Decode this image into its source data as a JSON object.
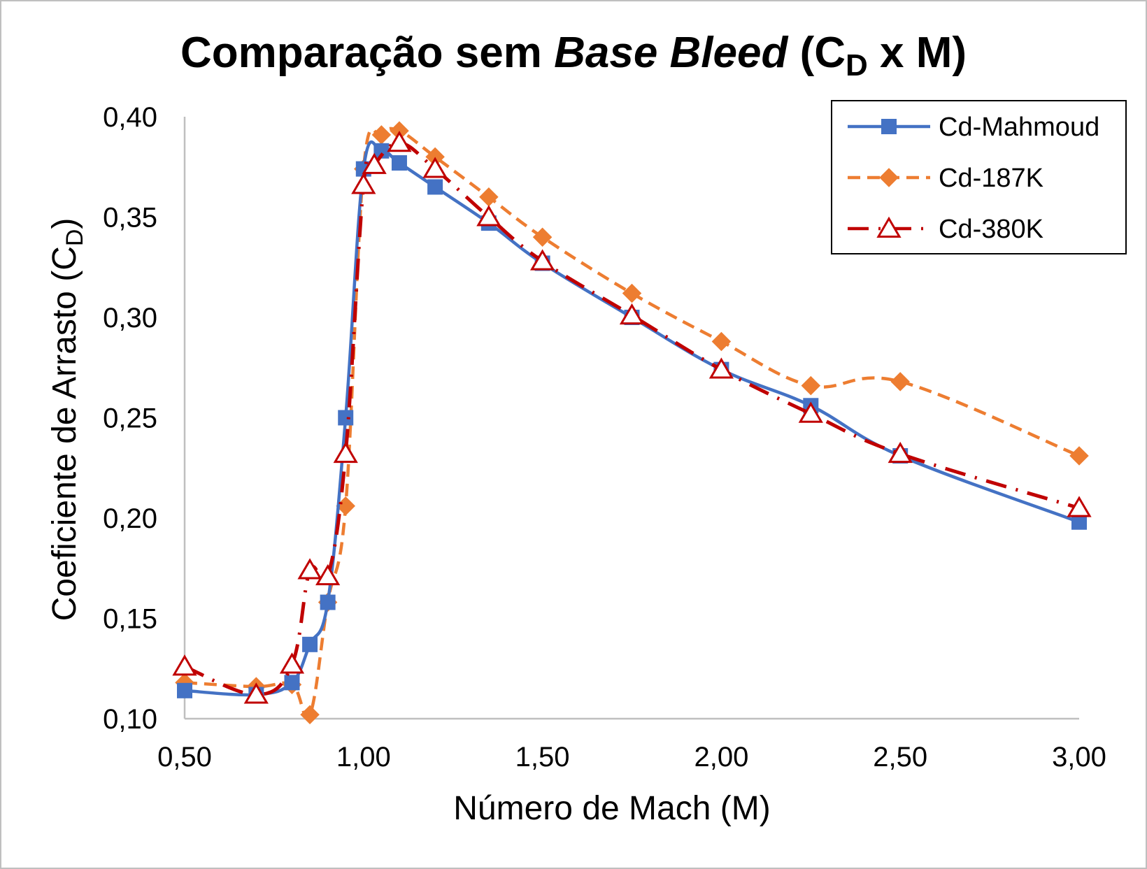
{
  "chart_data": {
    "type": "line",
    "title": {
      "main": "Comparação sem ",
      "italic": "Base Bleed",
      "tail_open": " (C",
      "tail_sub": "D",
      "tail_close": " x M)"
    },
    "xlabel": "Número de Mach (M)",
    "ylabel": {
      "main": "Coeficiente de Arrasto (C",
      "sub": "D",
      "close": ")"
    },
    "xlim": [
      0.5,
      3.0
    ],
    "ylim": [
      0.1,
      0.4
    ],
    "x_ticks": [
      "0,50",
      "1,00",
      "1,50",
      "2,00",
      "2,50",
      "3,00"
    ],
    "y_ticks": [
      "0,10",
      "0,15",
      "0,20",
      "0,25",
      "0,30",
      "0,35",
      "0,40"
    ],
    "grid": false,
    "legend_position": "top-right",
    "series": [
      {
        "name": "Cd-Mahmoud",
        "color": "#4472c4",
        "marker": "square",
        "line_style": "solid",
        "points": [
          [
            0.5,
            0.114
          ],
          [
            0.7,
            0.112
          ],
          [
            0.8,
            0.118
          ],
          [
            0.85,
            0.137
          ],
          [
            0.9,
            0.158
          ],
          [
            0.95,
            0.25
          ],
          [
            1.0,
            0.374
          ],
          [
            1.05,
            0.383
          ],
          [
            1.1,
            0.377
          ],
          [
            1.2,
            0.365
          ],
          [
            1.35,
            0.347
          ],
          [
            1.5,
            0.327
          ],
          [
            1.75,
            0.3
          ],
          [
            2.0,
            0.274
          ],
          [
            2.25,
            0.256
          ],
          [
            2.5,
            0.231
          ],
          [
            3.0,
            0.198
          ]
        ]
      },
      {
        "name": "Cd-187K",
        "color": "#ed7d31",
        "marker": "diamond",
        "line_style": "dashed",
        "points": [
          [
            0.5,
            0.118
          ],
          [
            0.7,
            0.116
          ],
          [
            0.8,
            0.117
          ],
          [
            0.85,
            0.102
          ],
          [
            0.9,
            0.158
          ],
          [
            0.95,
            0.206
          ],
          [
            1.0,
            0.374
          ],
          [
            1.05,
            0.391
          ],
          [
            1.1,
            0.393
          ],
          [
            1.2,
            0.38
          ],
          [
            1.35,
            0.36
          ],
          [
            1.5,
            0.34
          ],
          [
            1.75,
            0.312
          ],
          [
            2.0,
            0.288
          ],
          [
            2.25,
            0.266
          ],
          [
            2.5,
            0.268
          ],
          [
            3.0,
            0.231
          ]
        ]
      },
      {
        "name": "Cd-380K",
        "color": "#c00000",
        "marker": "triangle-open",
        "line_style": "dash-dot",
        "points": [
          [
            0.5,
            0.126
          ],
          [
            0.7,
            0.112
          ],
          [
            0.8,
            0.127
          ],
          [
            0.85,
            0.174
          ],
          [
            0.9,
            0.171
          ],
          [
            0.95,
            0.232
          ],
          [
            1.0,
            0.366
          ],
          [
            1.03,
            0.376
          ],
          [
            1.1,
            0.387
          ],
          [
            1.2,
            0.374
          ],
          [
            1.35,
            0.35
          ],
          [
            1.5,
            0.328
          ],
          [
            1.75,
            0.301
          ],
          [
            2.0,
            0.274
          ],
          [
            2.25,
            0.252
          ],
          [
            2.5,
            0.232
          ],
          [
            3.0,
            0.205
          ]
        ]
      }
    ]
  }
}
